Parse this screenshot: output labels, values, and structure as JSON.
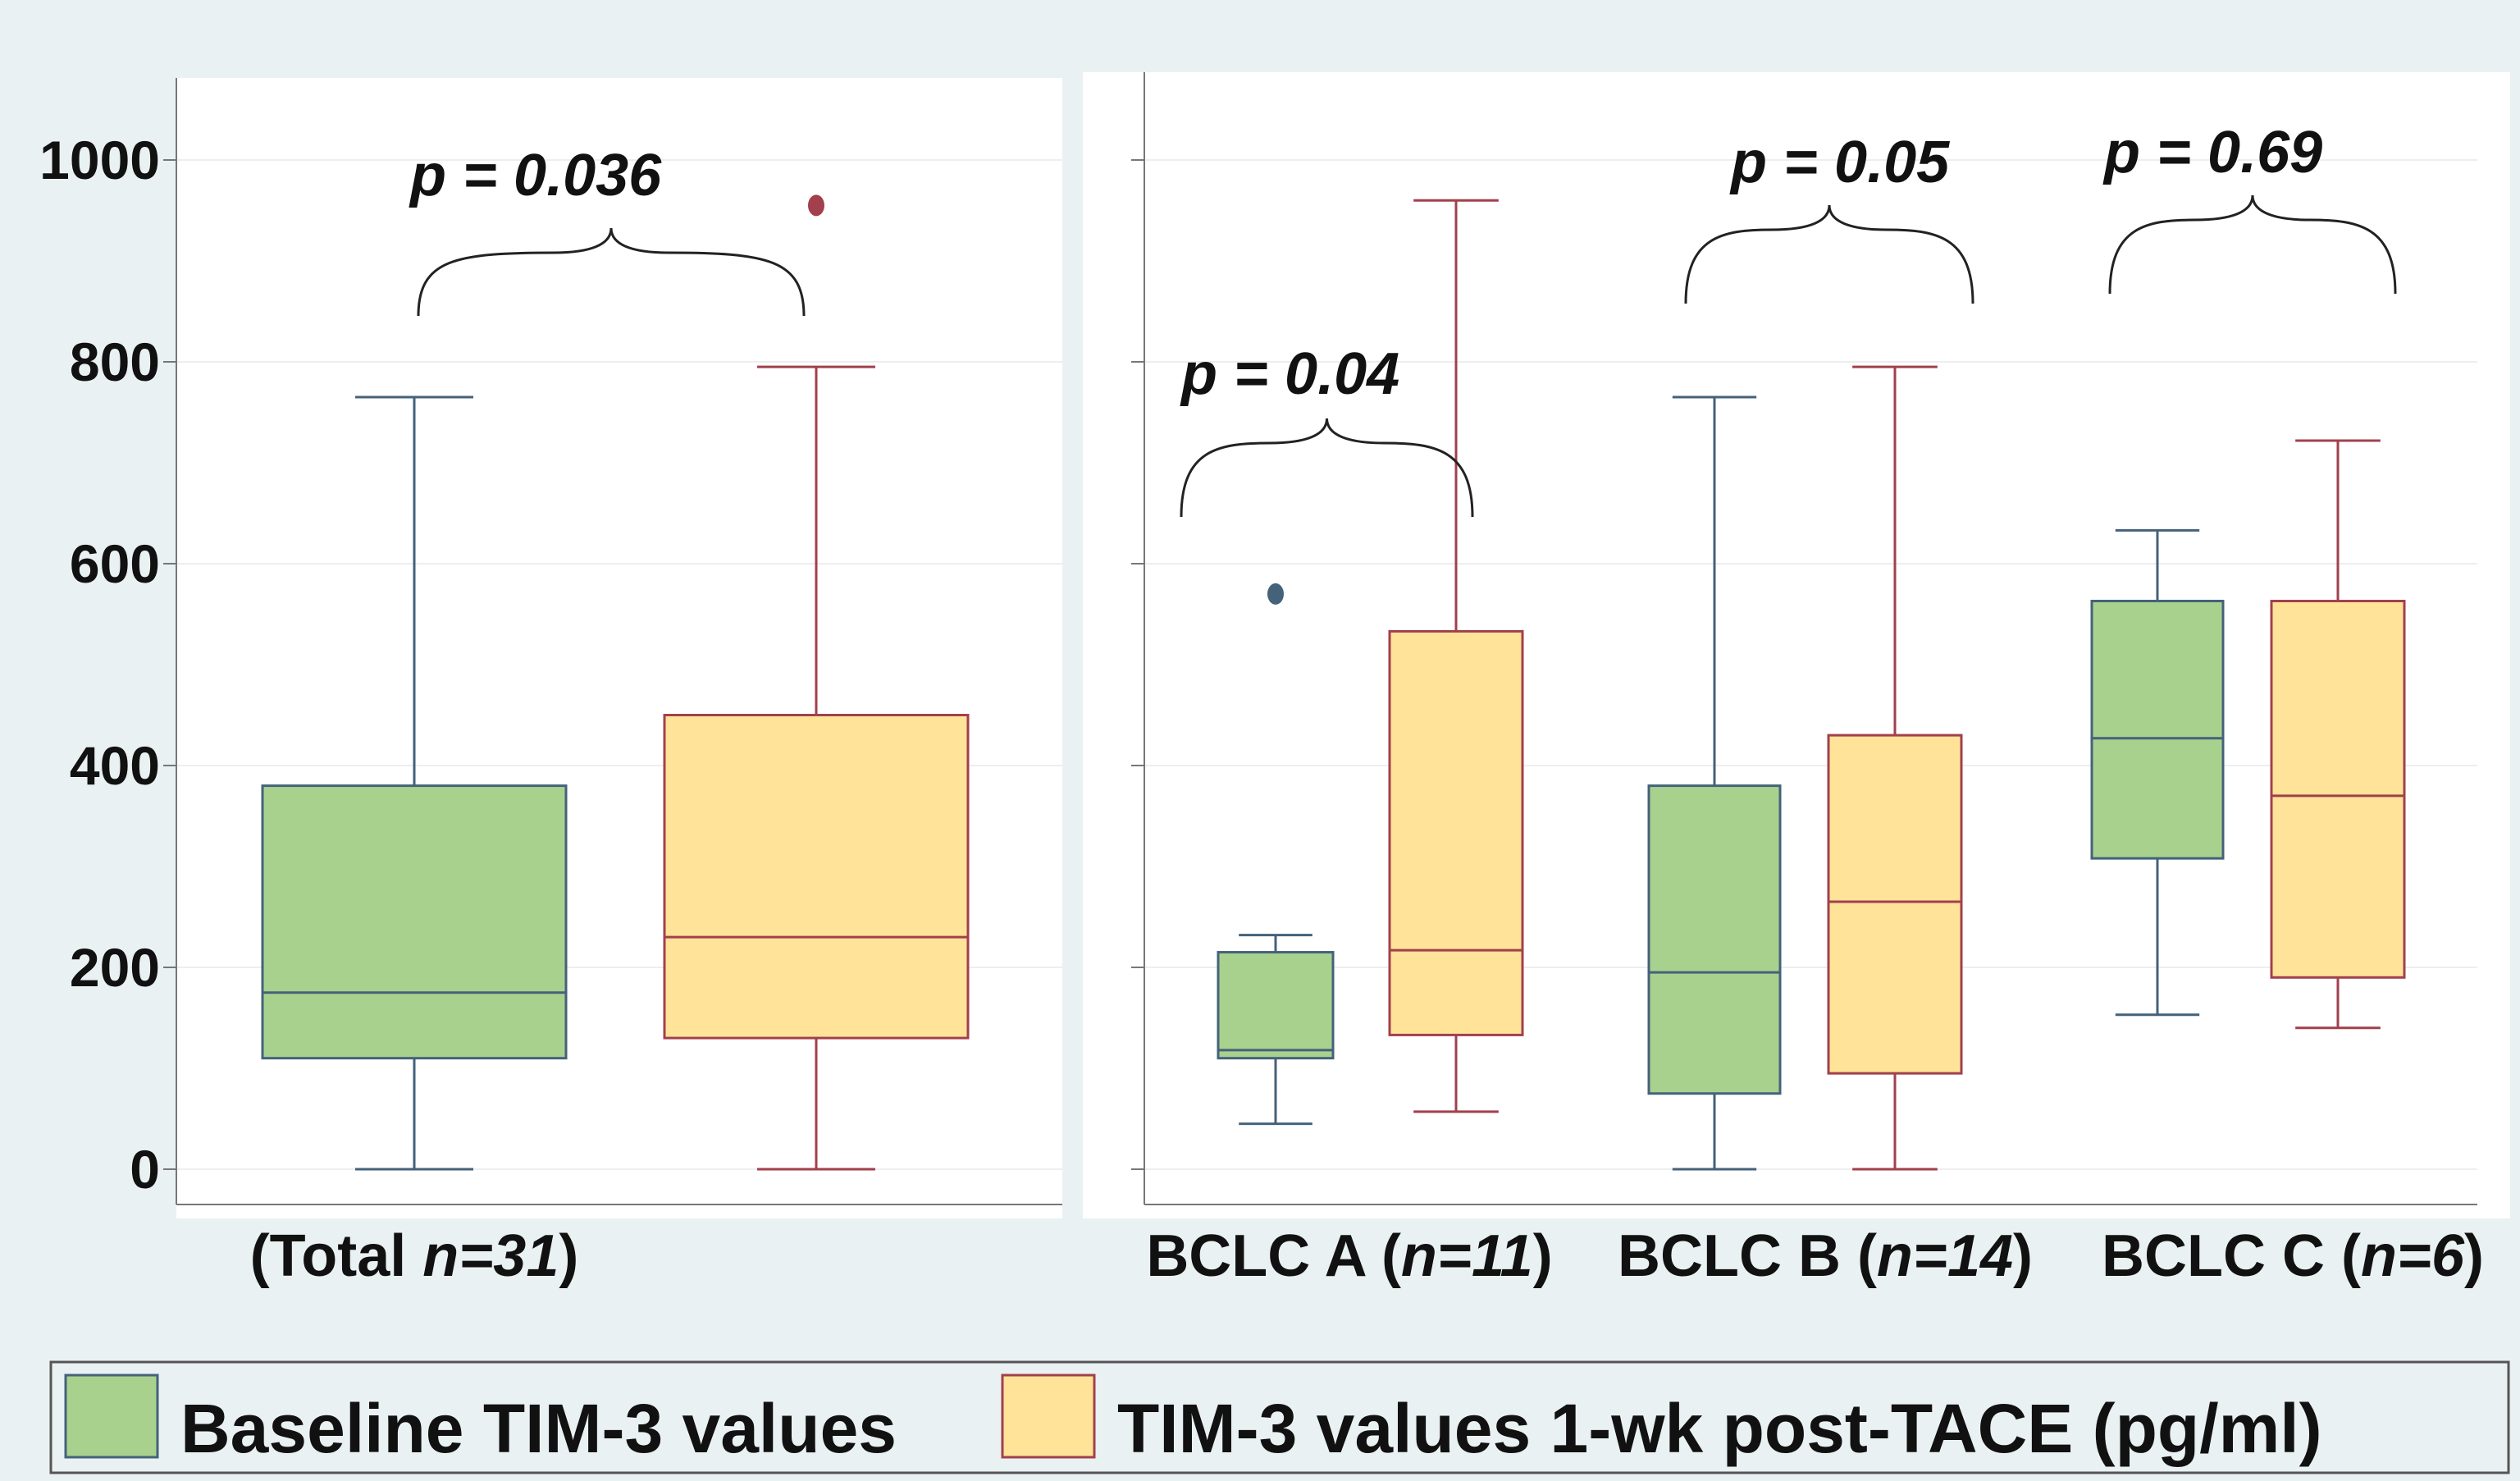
{
  "chart_data": {
    "type": "box",
    "ylim": [
      0,
      1000
    ],
    "y_ticks": [
      0,
      200,
      400,
      600,
      800,
      1000
    ],
    "grid": true,
    "legend_position": "bottom",
    "colors": {
      "baseline": "#a9d18e",
      "baseline_stroke": "#44627a",
      "post": "#ffe399",
      "post_stroke": "#a2404d",
      "bracket": "#222222"
    },
    "series": [
      {
        "key": "baseline",
        "name": "Baseline TIM-3 values"
      },
      {
        "key": "post",
        "name": "TIM-3 values 1-wk post-TACE (pg/ml)"
      }
    ],
    "panels": [
      {
        "id": "total",
        "groups": [
          {
            "label_prefix": "(Total ",
            "label_n": "n=31",
            "label_suffix": ")",
            "p_value": "p = 0.036",
            "baseline": {
              "min": 0,
              "q1": 110,
              "median": 175,
              "q3": 380,
              "max": 765,
              "outliers": []
            },
            "post": {
              "min": 0,
              "q1": 130,
              "median": 230,
              "q3": 450,
              "max": 795,
              "outliers": [
                955
              ]
            }
          }
        ]
      },
      {
        "id": "bclc",
        "groups": [
          {
            "label_prefix": "BCLC A (",
            "label_n": "n=11",
            "label_suffix": ")",
            "p_value": "p = 0.04",
            "baseline": {
              "min": 45,
              "q1": 110,
              "median": 118,
              "q3": 215,
              "max": 232,
              "outliers": [
                570
              ]
            },
            "post": {
              "min": 57,
              "q1": 133,
              "median": 217,
              "q3": 533,
              "max": 960,
              "outliers": []
            }
          },
          {
            "label_prefix": "BCLC B (",
            "label_n": "n=14",
            "label_suffix": ")",
            "p_value": "p = 0.05",
            "baseline": {
              "min": 0,
              "q1": 75,
              "median": 195,
              "q3": 380,
              "max": 765,
              "outliers": []
            },
            "post": {
              "min": 0,
              "q1": 95,
              "median": 265,
              "q3": 430,
              "max": 795,
              "outliers": []
            }
          },
          {
            "label_prefix": "BCLC C (",
            "label_n": "n=6",
            "label_suffix": ")",
            "p_value": "p = 0.69",
            "baseline": {
              "min": 153,
              "q1": 308,
              "median": 427,
              "q3": 563,
              "max": 633,
              "outliers": []
            },
            "post": {
              "min": 140,
              "q1": 190,
              "median": 370,
              "q3": 563,
              "max": 722,
              "outliers": []
            }
          }
        ]
      }
    ]
  }
}
